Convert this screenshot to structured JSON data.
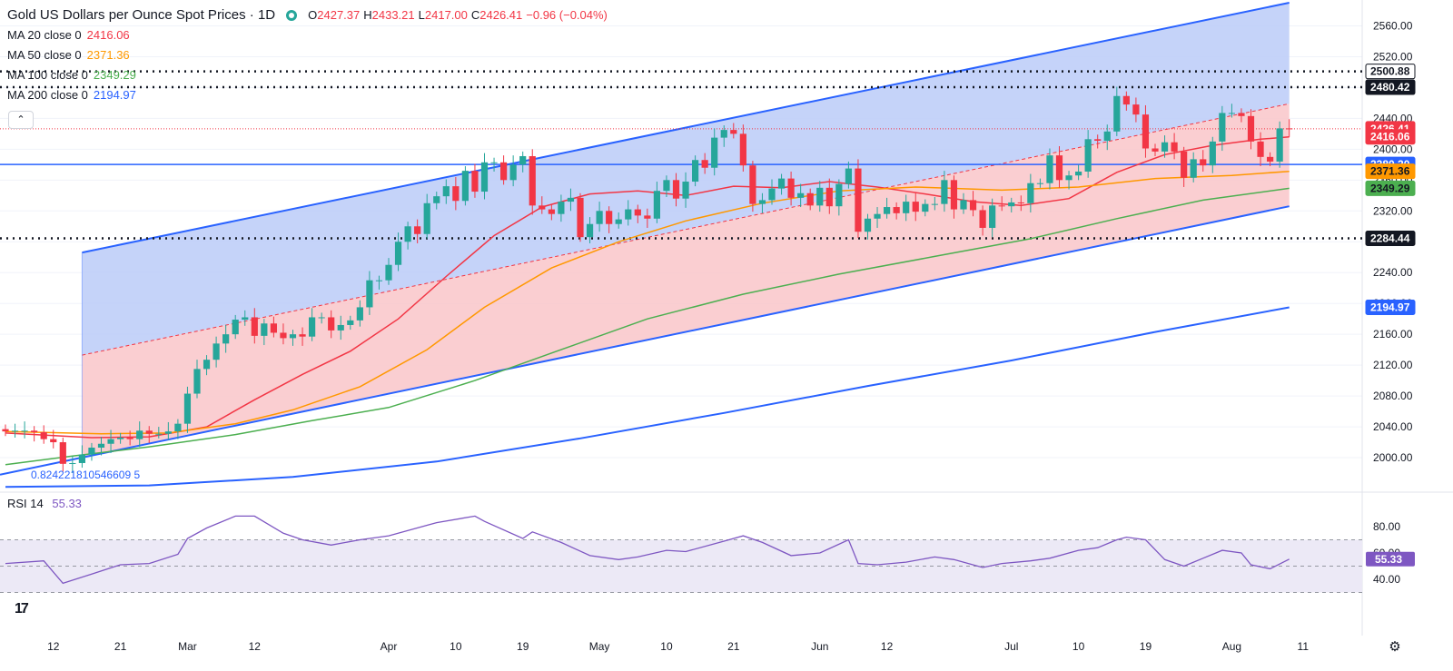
{
  "header": {
    "title": "Gold US Dollars per Ounce Spot Prices · 1D",
    "ohlc": [
      {
        "label": "O",
        "value": "2427.37"
      },
      {
        "label": "H",
        "value": "2433.21"
      },
      {
        "label": "L",
        "value": "2417.00"
      },
      {
        "label": "C",
        "value": "2426.41"
      },
      {
        "label": "",
        "value": "−0.96 (−0.04%)"
      }
    ],
    "moving_averages": [
      {
        "label": "MA 20 close 0",
        "value": "2416.06",
        "color": "#f23645"
      },
      {
        "label": "MA 50 close 0",
        "value": "2371.36",
        "color": "#ff9800"
      },
      {
        "label": "MA 100 close 0",
        "value": "2349.29",
        "color": "#4caf50"
      },
      {
        "label": "MA 200 close 0",
        "value": "2194.97",
        "color": "#2962ff"
      }
    ],
    "collapse_icon": "chevron-up-icon",
    "status_icon": "market-status-dot-icon"
  },
  "fib_label": "0.824221810546609 5",
  "rsi": {
    "label": "RSI 14",
    "value": "55.33",
    "color": "#7e57c2",
    "ticks": [
      "80.00",
      "60.00",
      "40.00"
    ]
  },
  "price_axis": {
    "ticks": [
      "2560.00",
      "2520.00",
      "2480.00",
      "2440.00",
      "2400.00",
      "2360.00",
      "2320.00",
      "2280.00",
      "2240.00",
      "2200.00",
      "2160.00",
      "2120.00",
      "2080.00",
      "2040.00",
      "2000.00"
    ],
    "badges": [
      {
        "value": "2500.88",
        "bg": "#ffffff",
        "fg": "#131722",
        "border": "#131722"
      },
      {
        "value": "2480.42",
        "bg": "#131722",
        "fg": "#ffffff"
      },
      {
        "value": "2426.41",
        "bg": "#f23645",
        "fg": "#ffffff"
      },
      {
        "value": "2416.06",
        "bg": "#f23645",
        "fg": "#ffffff"
      },
      {
        "value": "2380.20",
        "bg": "#2962ff",
        "fg": "#ffffff"
      },
      {
        "value": "2371.36",
        "bg": "#ff9800",
        "fg": "#131722"
      },
      {
        "value": "2349.29",
        "bg": "#4caf50",
        "fg": "#131722"
      },
      {
        "value": "2284.44",
        "bg": "#131722",
        "fg": "#ffffff"
      },
      {
        "value": "2194.97",
        "bg": "#2962ff",
        "fg": "#ffffff"
      }
    ]
  },
  "time_axis": {
    "ticks": [
      "12",
      "21",
      "Mar",
      "12",
      "Apr",
      "10",
      "19",
      "May",
      "10",
      "21",
      "Jun",
      "12",
      "Jul",
      "10",
      "19",
      "Aug",
      "11"
    ]
  },
  "colors": {
    "up": "#26a69a",
    "down": "#f23645",
    "channel_line": "#2962ff",
    "channel_upper_fill": "#bbcbf8",
    "channel_lower_fill": "#f9c5c9",
    "rsi_band": "#ece9f6",
    "grid": "#f0f3fa"
  },
  "chart_data": {
    "type": "candlestick",
    "title": "Gold US Dollars per Ounce Spot Prices · 1D",
    "ylim": [
      1960,
      2590
    ],
    "x_range": [
      "2024-02-05",
      "2024-08-12"
    ],
    "dates": [
      "2024-02-05",
      "2024-02-06",
      "2024-02-07",
      "2024-02-08",
      "2024-02-09",
      "2024-02-12",
      "2024-02-13",
      "2024-02-14",
      "2024-02-15",
      "2024-02-16",
      "2024-02-19",
      "2024-02-20",
      "2024-02-21",
      "2024-02-22",
      "2024-02-23",
      "2024-02-26",
      "2024-02-27",
      "2024-02-28",
      "2024-02-29",
      "2024-03-01",
      "2024-03-04",
      "2024-03-05",
      "2024-03-06",
      "2024-03-07",
      "2024-03-08",
      "2024-03-11",
      "2024-03-12",
      "2024-03-13",
      "2024-03-14",
      "2024-03-15",
      "2024-03-18",
      "2024-03-19",
      "2024-03-20",
      "2024-03-21",
      "2024-03-22",
      "2024-03-25",
      "2024-03-26",
      "2024-03-27",
      "2024-03-28",
      "2024-03-29",
      "2024-04-01",
      "2024-04-02",
      "2024-04-03",
      "2024-04-04",
      "2024-04-05",
      "2024-04-08",
      "2024-04-09",
      "2024-04-10",
      "2024-04-11",
      "2024-04-12",
      "2024-04-15",
      "2024-04-16",
      "2024-04-17",
      "2024-04-18",
      "2024-04-19",
      "2024-04-22",
      "2024-04-23",
      "2024-04-24",
      "2024-04-25",
      "2024-04-26",
      "2024-04-29",
      "2024-04-30",
      "2024-05-01",
      "2024-05-02",
      "2024-05-03",
      "2024-05-06",
      "2024-05-07",
      "2024-05-08",
      "2024-05-09",
      "2024-05-10",
      "2024-05-13",
      "2024-05-14",
      "2024-05-15",
      "2024-05-16",
      "2024-05-17",
      "2024-05-20",
      "2024-05-21",
      "2024-05-22",
      "2024-05-23",
      "2024-05-24",
      "2024-05-27",
      "2024-05-28",
      "2024-05-29",
      "2024-05-30",
      "2024-05-31",
      "2024-06-03",
      "2024-06-04",
      "2024-06-05",
      "2024-06-06",
      "2024-06-07",
      "2024-06-10",
      "2024-06-11",
      "2024-06-12",
      "2024-06-13",
      "2024-06-14",
      "2024-06-17",
      "2024-06-18",
      "2024-06-19",
      "2024-06-20",
      "2024-06-21",
      "2024-06-24",
      "2024-06-25",
      "2024-06-26",
      "2024-06-27",
      "2024-06-28",
      "2024-07-01",
      "2024-07-02",
      "2024-07-03",
      "2024-07-04",
      "2024-07-05",
      "2024-07-08",
      "2024-07-09",
      "2024-07-10",
      "2024-07-11",
      "2024-07-12",
      "2024-07-15",
      "2024-07-16",
      "2024-07-17",
      "2024-07-18",
      "2024-07-19",
      "2024-07-22",
      "2024-07-23",
      "2024-07-24",
      "2024-07-25",
      "2024-07-26",
      "2024-07-29",
      "2024-07-30",
      "2024-07-31",
      "2024-08-01",
      "2024-08-02",
      "2024-08-05",
      "2024-08-06",
      "2024-08-07",
      "2024-08-08",
      "2024-08-09"
    ],
    "closes": [
      2034,
      2035,
      2035,
      2033,
      2024,
      2020,
      1992,
      1993,
      2004,
      2013,
      2018,
      2024,
      2026,
      2024,
      2035,
      2031,
      2031,
      2034,
      2044,
      2083,
      2115,
      2127,
      2148,
      2160,
      2179,
      2182,
      2158,
      2174,
      2162,
      2155,
      2160,
      2157,
      2182,
      2182,
      2165,
      2172,
      2178,
      2195,
      2230,
      2230,
      2250,
      2280,
      2300,
      2290,
      2330,
      2339,
      2352,
      2333,
      2372,
      2345,
      2383,
      2383,
      2360,
      2380,
      2391,
      2327,
      2322,
      2316,
      2332,
      2337,
      2286,
      2303,
      2320,
      2303,
      2309,
      2322,
      2314,
      2310,
      2346,
      2360,
      2336,
      2358,
      2386,
      2376,
      2415,
      2425,
      2420,
      2379,
      2329,
      2334,
      2349,
      2362,
      2337,
      2343,
      2327,
      2350,
      2326,
      2355,
      2375,
      2293,
      2310,
      2316,
      2325,
      2317,
      2332,
      2319,
      2329,
      2329,
      2360,
      2322,
      2334,
      2321,
      2298,
      2327,
      2326,
      2331,
      2330,
      2356,
      2356,
      2392,
      2360,
      2366,
      2371,
      2413,
      2411,
      2423,
      2469,
      2458,
      2445,
      2401,
      2397,
      2409,
      2397,
      2363,
      2387,
      2379,
      2410,
      2447,
      2447,
      2443,
      2410,
      2390,
      2384,
      2427,
      2426
    ],
    "rsi": {
      "dates": [
        "2024-02-05",
        "2024-02-09",
        "2024-02-13",
        "2024-02-16",
        "2024-02-21",
        "2024-02-26",
        "2024-02-29",
        "2024-03-01",
        "2024-03-05",
        "2024-03-08",
        "2024-03-12",
        "2024-03-15",
        "2024-03-19",
        "2024-03-22",
        "2024-03-27",
        "2024-04-01",
        "2024-04-05",
        "2024-04-08",
        "2024-04-12",
        "2024-04-15",
        "2024-04-19",
        "2024-04-22",
        "2024-04-25",
        "2024-04-30",
        "2024-05-03",
        "2024-05-07",
        "2024-05-10",
        "2024-05-14",
        "2024-05-20",
        "2024-05-22",
        "2024-05-24",
        "2024-05-29",
        "2024-06-03",
        "2024-06-06",
        "2024-06-07",
        "2024-06-11",
        "2024-06-14",
        "2024-06-19",
        "2024-06-21",
        "2024-06-26",
        "2024-06-28",
        "2024-07-03",
        "2024-07-05",
        "2024-07-10",
        "2024-07-12",
        "2024-07-16",
        "2024-07-17",
        "2024-07-19",
        "2024-07-23",
        "2024-07-25",
        "2024-07-29",
        "2024-07-31",
        "2024-08-02",
        "2024-08-05",
        "2024-08-07",
        "2024-08-09"
      ],
      "values": [
        52,
        54,
        37,
        44,
        51,
        52,
        59,
        71,
        79,
        88,
        88,
        75,
        70,
        66,
        70,
        73,
        81,
        83,
        88,
        84,
        71,
        76,
        68,
        58,
        55,
        57,
        62,
        61,
        69,
        73,
        68,
        58,
        60,
        70,
        52,
        51,
        53,
        57,
        55,
        49,
        52,
        54,
        56,
        62,
        64,
        70,
        72,
        70,
        55,
        50,
        56,
        62,
        60,
        51,
        48,
        55.33
      ]
    },
    "series": [
      {
        "name": "MA 20 close 0",
        "color": "#f23645",
        "points": [
          [
            "2024-02-05",
            2032
          ],
          [
            "2024-02-16",
            2026
          ],
          [
            "2024-02-26",
            2027
          ],
          [
            "2024-03-05",
            2040
          ],
          [
            "2024-03-12",
            2075
          ],
          [
            "2024-03-19",
            2108
          ],
          [
            "2024-03-26",
            2138
          ],
          [
            "2024-04-02",
            2180
          ],
          [
            "2024-04-09",
            2235
          ],
          [
            "2024-04-16",
            2288
          ],
          [
            "2024-04-23",
            2325
          ],
          [
            "2024-04-30",
            2342
          ],
          [
            "2024-05-07",
            2346
          ],
          [
            "2024-05-14",
            2340
          ],
          [
            "2024-05-21",
            2352
          ],
          [
            "2024-05-28",
            2350
          ],
          [
            "2024-06-04",
            2358
          ],
          [
            "2024-06-11",
            2351
          ],
          [
            "2024-06-18",
            2342
          ],
          [
            "2024-06-25",
            2332
          ],
          [
            "2024-07-02",
            2327
          ],
          [
            "2024-07-09",
            2336
          ],
          [
            "2024-07-16",
            2370
          ],
          [
            "2024-07-23",
            2393
          ],
          [
            "2024-07-30",
            2405
          ],
          [
            "2024-08-06",
            2413
          ],
          [
            "2024-08-09",
            2416.06
          ]
        ]
      },
      {
        "name": "MA 50 close 0",
        "color": "#ff9800",
        "points": [
          [
            "2024-02-05",
            2034
          ],
          [
            "2024-02-19",
            2031
          ],
          [
            "2024-02-28",
            2032
          ],
          [
            "2024-03-08",
            2044
          ],
          [
            "2024-03-18",
            2062
          ],
          [
            "2024-03-27",
            2092
          ],
          [
            "2024-04-05",
            2140
          ],
          [
            "2024-04-15",
            2195
          ],
          [
            "2024-04-24",
            2246
          ],
          [
            "2024-05-03",
            2280
          ],
          [
            "2024-05-14",
            2307
          ],
          [
            "2024-05-24",
            2330
          ],
          [
            "2024-06-05",
            2346
          ],
          [
            "2024-06-17",
            2351
          ],
          [
            "2024-06-28",
            2347
          ],
          [
            "2024-07-10",
            2351
          ],
          [
            "2024-07-22",
            2362
          ],
          [
            "2024-08-01",
            2366
          ],
          [
            "2024-08-09",
            2371.36
          ]
        ]
      },
      {
        "name": "MA 100 close 0",
        "color": "#4caf50",
        "points": [
          [
            "2024-02-05",
            1991
          ],
          [
            "2024-02-14",
            2002
          ],
          [
            "2024-02-26",
            2014
          ],
          [
            "2024-03-08",
            2030
          ],
          [
            "2024-03-20",
            2048
          ],
          [
            "2024-04-01",
            2065
          ],
          [
            "2024-04-12",
            2100
          ],
          [
            "2024-04-25",
            2140
          ],
          [
            "2024-05-08",
            2180
          ],
          [
            "2024-05-22",
            2212
          ],
          [
            "2024-06-05",
            2238
          ],
          [
            "2024-06-19",
            2261
          ],
          [
            "2024-07-03",
            2284
          ],
          [
            "2024-07-16",
            2310
          ],
          [
            "2024-07-29",
            2334
          ],
          [
            "2024-08-09",
            2349.29
          ]
        ]
      },
      {
        "name": "MA 200 close 0",
        "color": "#2962ff",
        "points": [
          [
            "2024-02-05",
            1962
          ],
          [
            "2024-02-26",
            1964
          ],
          [
            "2024-03-18",
            1975
          ],
          [
            "2024-04-08",
            1995
          ],
          [
            "2024-04-29",
            2025
          ],
          [
            "2024-05-20",
            2058
          ],
          [
            "2024-06-10",
            2093
          ],
          [
            "2024-07-01",
            2126
          ],
          [
            "2024-07-22",
            2163
          ],
          [
            "2024-08-09",
            2194.97
          ]
        ]
      }
    ],
    "channel": {
      "upper": [
        [
          "2024-02-15",
          2266
        ],
        [
          "2024-08-09",
          2590
        ]
      ],
      "mid": [
        [
          "2024-02-15",
          2133
        ],
        [
          "2024-08-09",
          2459
        ]
      ],
      "lower": [
        [
          "2024-02-15",
          2000
        ],
        [
          "2024-08-09",
          2326
        ]
      ]
    },
    "horizontal_levels": [
      {
        "value": 2500.88,
        "style": "dotted"
      },
      {
        "value": 2480.42,
        "style": "dotted"
      },
      {
        "value": 2426.41,
        "style": "dotted-red"
      },
      {
        "value": 2380.2,
        "style": "solid"
      },
      {
        "value": 2284.44,
        "style": "dotted"
      }
    ]
  }
}
